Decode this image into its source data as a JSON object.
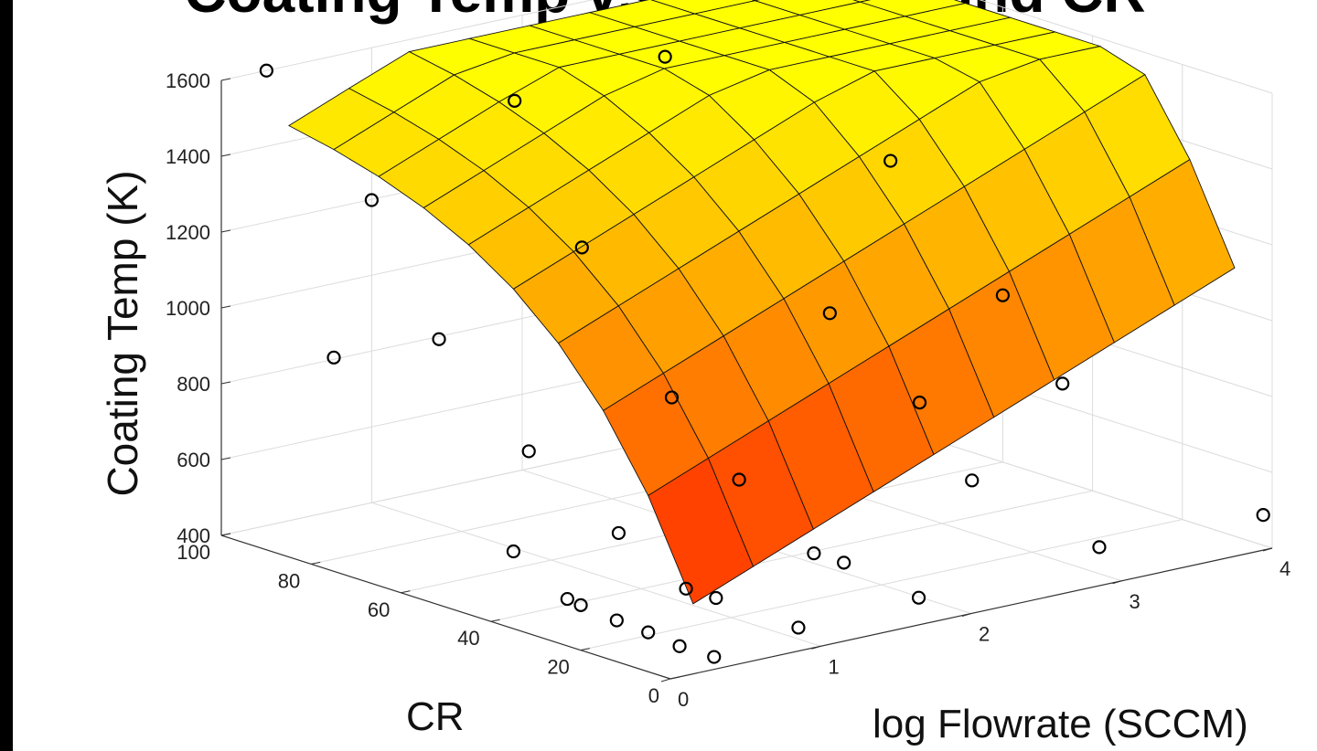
{
  "chart_data": {
    "type": "surface",
    "title": "Coating Temp vs. Flowrate and CR",
    "xlabel": "log Flowrate (SCCM)",
    "ylabel": "CR",
    "zlabel": "Coating Temp (K)",
    "xlim": [
      0,
      4
    ],
    "ylim": [
      0,
      100
    ],
    "zlim": [
      400,
      1600
    ],
    "x_ticks": [
      "0",
      "1",
      "2",
      "3",
      "4"
    ],
    "y_ticks": [
      "0",
      "20",
      "40",
      "60",
      "80",
      "100"
    ],
    "z_ticks": [
      "400",
      "600",
      "800",
      "1000",
      "1200",
      "1400",
      "1600"
    ],
    "grid": true,
    "colormap": [
      "#ff0000",
      "#ff8000",
      "#ffff00"
    ],
    "surface": {
      "x": [
        0.3,
        0.7,
        1.1,
        1.5,
        1.9,
        2.3,
        2.7,
        3.1,
        3.5,
        3.9
      ],
      "y": [
        5,
        15,
        25,
        35,
        45,
        55,
        65,
        75,
        85,
        95
      ],
      "model": "z = min(1600, 400 + 1150*(1-exp(-y/35)) + 160*(x-0.3))"
    },
    "points": [
      {
        "x": 0.35,
        "y": 2,
        "z": 420
      },
      {
        "x": 0.3,
        "y": 8,
        "z": 430
      },
      {
        "x": 0.3,
        "y": 15,
        "z": 440
      },
      {
        "x": 0.3,
        "y": 22,
        "z": 445
      },
      {
        "x": 0.3,
        "y": 30,
        "z": 455
      },
      {
        "x": 0.3,
        "y": 33,
        "z": 460
      },
      {
        "x": 0.3,
        "y": 45,
        "z": 540
      },
      {
        "x": 0.3,
        "y": 85,
        "z": 900
      },
      {
        "x": 0.3,
        "y": 100,
        "z": 1600
      },
      {
        "x": 1.0,
        "y": 5,
        "z": 430
      },
      {
        "x": 0.9,
        "y": 20,
        "z": 460
      },
      {
        "x": 0.85,
        "y": 25,
        "z": 470
      },
      {
        "x": 0.85,
        "y": 40,
        "z": 560
      },
      {
        "x": 0.85,
        "y": 60,
        "z": 700
      },
      {
        "x": 0.85,
        "y": 80,
        "z": 920
      },
      {
        "x": 0.85,
        "y": 95,
        "z": 1230
      },
      {
        "x": 1.8,
        "y": 5,
        "z": 440
      },
      {
        "x": 1.75,
        "y": 20,
        "z": 480
      },
      {
        "x": 1.7,
        "y": 25,
        "z": 490
      },
      {
        "x": 1.8,
        "y": 45,
        "z": 600
      },
      {
        "x": 1.8,
        "y": 60,
        "z": 760
      },
      {
        "x": 1.8,
        "y": 80,
        "z": 1080
      },
      {
        "x": 1.8,
        "y": 95,
        "z": 1410
      },
      {
        "x": 3.0,
        "y": 5,
        "z": 470
      },
      {
        "x": 2.9,
        "y": 30,
        "z": 560
      },
      {
        "x": 3.0,
        "y": 45,
        "z": 700
      },
      {
        "x": 3.0,
        "y": 65,
        "z": 860
      },
      {
        "x": 2.8,
        "y": 95,
        "z": 1440
      },
      {
        "x": 4.0,
        "y": 2,
        "z": 480
      },
      {
        "x": 3.8,
        "y": 40,
        "z": 700
      },
      {
        "x": 4.0,
        "y": 60,
        "z": 840
      },
      {
        "x": 4.0,
        "y": 85,
        "z": 1100
      }
    ]
  }
}
